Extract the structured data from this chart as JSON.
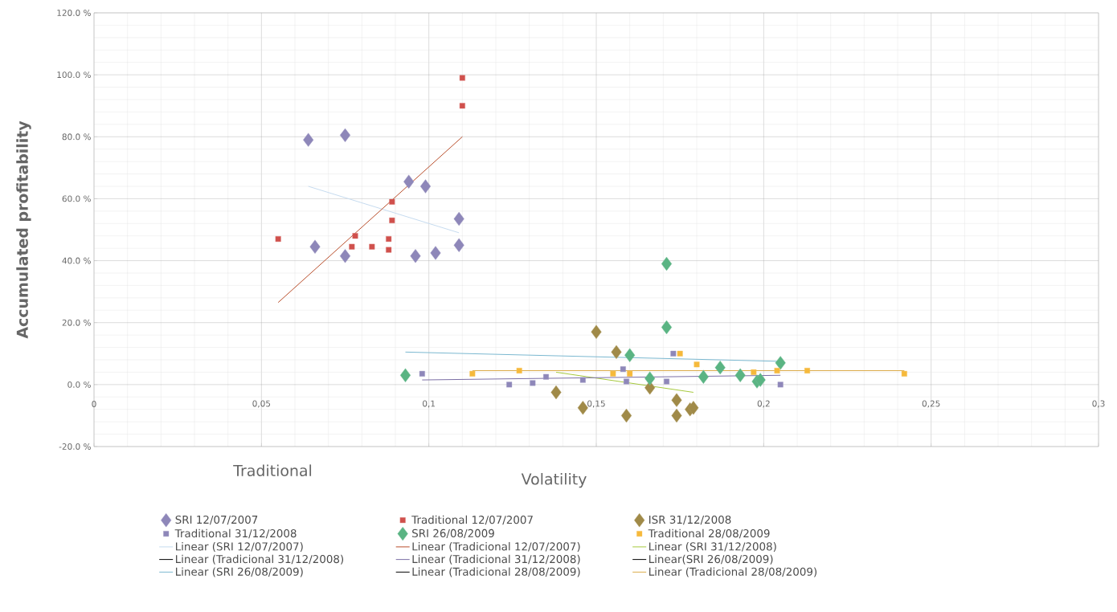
{
  "chart_data": {
    "type": "scatter",
    "xlabel": "Volatility",
    "ylabel": "Accumulated profitability",
    "annotations": [
      "Traditional"
    ],
    "xlim": [
      0,
      0.3
    ],
    "ylim": [
      -20,
      120
    ],
    "xticks": [
      0,
      {
        "value": 0.05,
        "label": "0,05"
      },
      {
        "value": 0.1,
        "label": "0,1"
      },
      {
        "value": 0.15,
        "label": "0,15"
      },
      {
        "value": 0.2,
        "label": "0,2"
      },
      {
        "value": 0.25,
        "label": "0,25"
      },
      {
        "value": 0.3,
        "label": "0,3"
      }
    ],
    "yticks": [
      {
        "value": -20,
        "label": "-20.0 %"
      },
      {
        "value": 0,
        "label": "0.0 %"
      },
      {
        "value": 20,
        "label": "20.0 %"
      },
      {
        "value": 40,
        "label": "40.0 %"
      },
      {
        "value": 60,
        "label": "60.0 %"
      },
      {
        "value": 80,
        "label": "80.0 %"
      },
      {
        "value": 100,
        "label": "100.0 %"
      },
      {
        "value": 120,
        "label": "120.0 %"
      }
    ],
    "grid": true,
    "legend": "bottom",
    "series": [
      {
        "name": "SRI 12/07/2007",
        "color": "#8e87b9",
        "marker": "diamond",
        "x": [
          0.064,
          0.075,
          0.094,
          0.099,
          0.109,
          0.066,
          0.075,
          0.096,
          0.102,
          0.109
        ],
        "values": [
          79,
          80.5,
          65.5,
          64,
          53.5,
          44.5,
          41.5,
          41.5,
          42.5,
          45
        ]
      },
      {
        "name": "Traditional 12/07/2007",
        "color": "#d0504c",
        "marker": "square",
        "x": [
          0.11,
          0.11,
          0.089,
          0.089,
          0.078,
          0.055,
          0.088,
          0.077,
          0.083,
          0.088
        ],
        "values": [
          99,
          90,
          59,
          53,
          48,
          47,
          47,
          44.5,
          44.5,
          43.5
        ]
      },
      {
        "name": "ISR 31/12/2008",
        "color": "#a08a48",
        "marker": "diamond",
        "x": [
          0.15,
          0.156,
          0.138,
          0.146,
          0.159,
          0.166,
          0.174,
          0.174,
          0.178,
          0.179
        ],
        "values": [
          17,
          10.5,
          -2.5,
          -7.5,
          -10,
          -1,
          -5,
          -10,
          -8,
          -7.5
        ]
      },
      {
        "name": "Traditional 31/12/2008",
        "color": "#8e87b9",
        "marker": "square",
        "x": [
          0.098,
          0.124,
          0.131,
          0.135,
          0.146,
          0.158,
          0.159,
          0.173,
          0.171,
          0.205
        ],
        "values": [
          3.5,
          0,
          0.5,
          2.5,
          1.5,
          5,
          1,
          10,
          1,
          0
        ]
      },
      {
        "name": "SRI 26/08/2009",
        "color": "#5ab483",
        "marker": "diamond",
        "x": [
          0.171,
          0.171,
          0.16,
          0.166,
          0.182,
          0.187,
          0.193,
          0.198,
          0.199,
          0.205,
          0.093
        ],
        "values": [
          39,
          18.5,
          9.5,
          2,
          2.5,
          5.5,
          3,
          1,
          1.5,
          7,
          3
        ]
      },
      {
        "name": "Traditional 28/08/2009",
        "color": "#f6b93b",
        "marker": "square",
        "x": [
          0.113,
          0.127,
          0.155,
          0.16,
          0.175,
          0.18,
          0.197,
          0.204,
          0.213,
          0.242
        ],
        "values": [
          3.5,
          4.5,
          3.5,
          3.5,
          10,
          6.5,
          4,
          4.5,
          4.5,
          3.5
        ]
      },
      {
        "name": "Linear (SRI 12/07/2007)",
        "type": "line",
        "color": "#c6dbef",
        "x": [
          0.064,
          0.109
        ],
        "values": [
          64,
          49
        ]
      },
      {
        "name": "Linear (Tradicional 12/07/2007)",
        "type": "line",
        "color": "#b94d2a",
        "x": [
          0.055,
          0.11
        ],
        "values": [
          26.5,
          80
        ]
      },
      {
        "name": "Linear (SRI 31/12/2008)",
        "type": "line",
        "color": "#a6c93c",
        "x": [
          0.138,
          0.179
        ],
        "values": [
          4,
          -2.5
        ]
      },
      {
        "name": "Linear (Tradicional 31/12/2008)",
        "type": "line",
        "color": "#000000",
        "x": [
          null
        ],
        "values": [
          null
        ]
      },
      {
        "name": "Linear (Tradicional 31/12/2008)",
        "type": "line",
        "color": "#7b6ea5",
        "x": [
          0.098,
          0.205
        ],
        "values": [
          1.5,
          3
        ]
      },
      {
        "name": "Linear(SRI 26/08/2009)",
        "type": "line",
        "color": "#000000",
        "x": [
          null
        ],
        "values": [
          null
        ]
      },
      {
        "name": "Linear (SRI 26/08/2009)",
        "type": "line",
        "color": "#7ab8d0",
        "x": [
          0.093,
          0.205
        ],
        "values": [
          10.5,
          7.5
        ]
      },
      {
        "name": "Linear (Tradicional 28/08/2009)",
        "type": "line",
        "color": "#000000",
        "x": [
          null
        ],
        "values": [
          null
        ]
      },
      {
        "name": "Linear (Tradicional 28/08/2009)",
        "type": "line",
        "color": "#dbac48",
        "x": [
          0.113,
          0.242
        ],
        "values": [
          4.5,
          4.5
        ]
      }
    ]
  }
}
